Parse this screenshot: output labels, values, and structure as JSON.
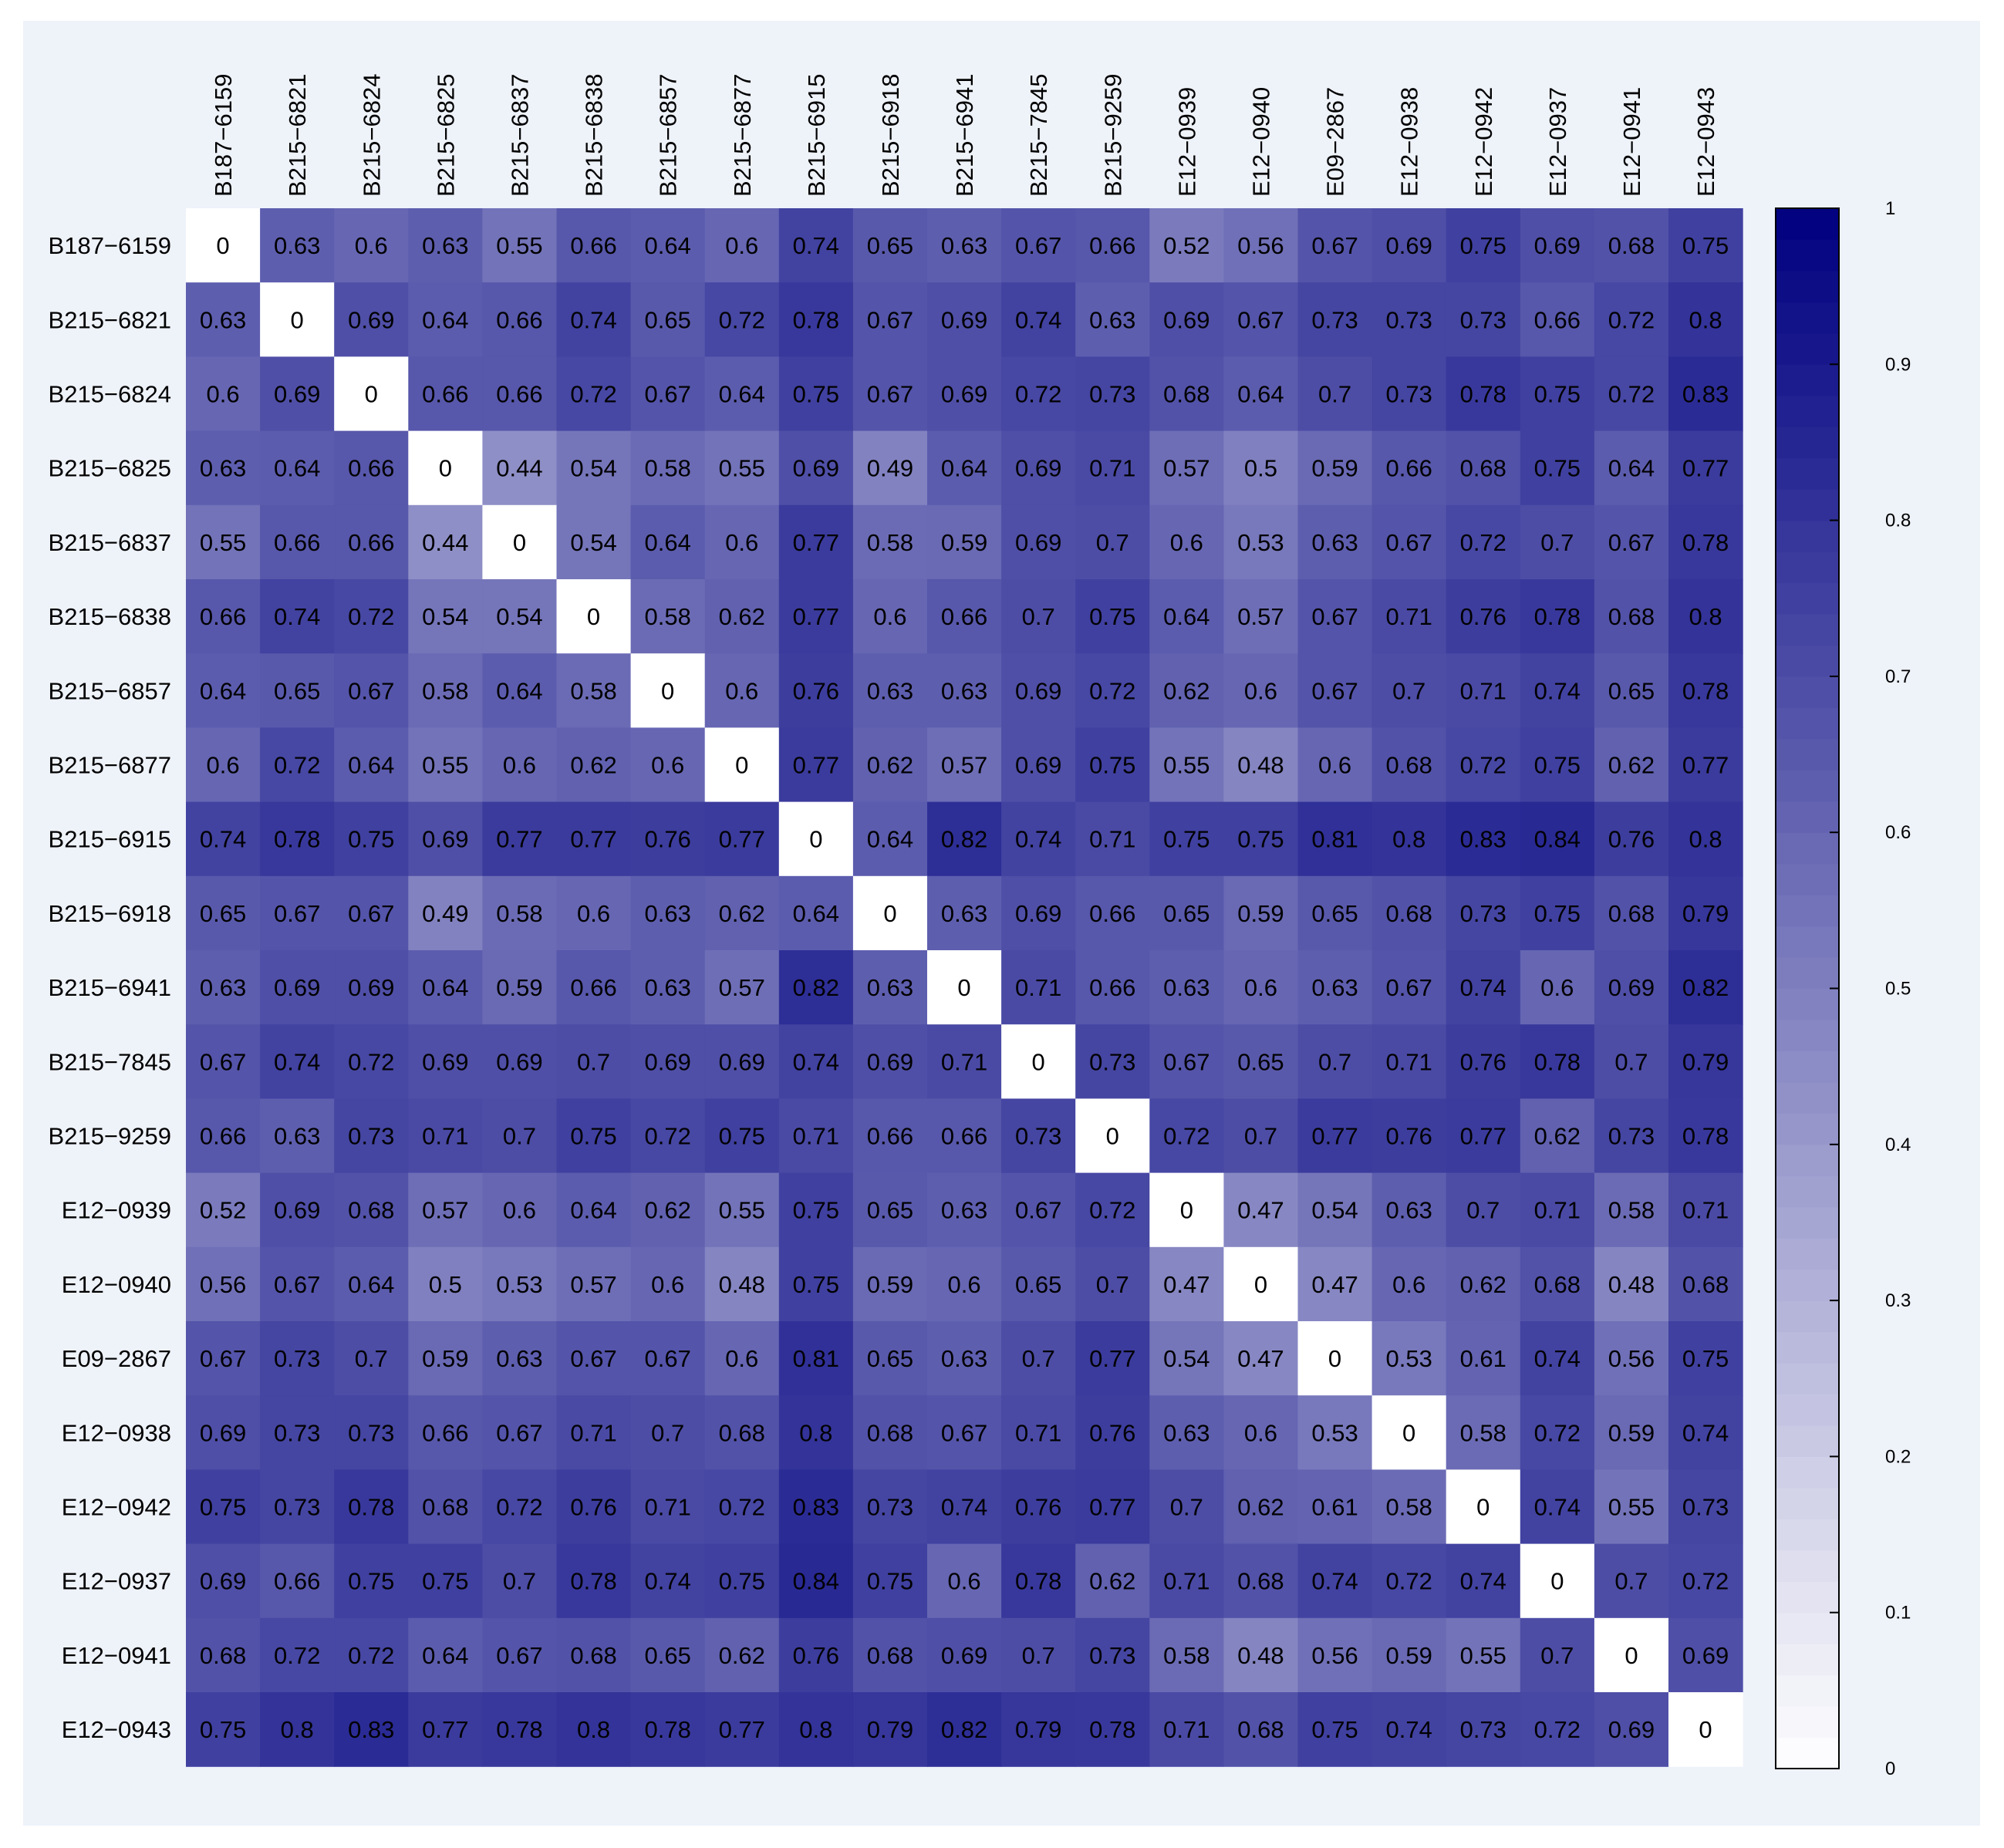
{
  "chart_data": {
    "type": "heatmap",
    "title": "",
    "xlabel": "",
    "ylabel": "",
    "row_labels": [
      "B187−6159",
      "B215−6821",
      "B215−6824",
      "B215−6825",
      "B215−6837",
      "B215−6838",
      "B215−6857",
      "B215−6877",
      "B215−6915",
      "B215−6918",
      "B215−6941",
      "B215−7845",
      "B215−9259",
      "E12−0939",
      "E12−0940",
      "E09−2867",
      "E12−0938",
      "E12−0942",
      "E12−0937",
      "E12−0941",
      "E12−0943"
    ],
    "col_labels": [
      "B187−6159",
      "B215−6821",
      "B215−6824",
      "B215−6825",
      "B215−6837",
      "B215−6838",
      "B215−6857",
      "B215−6877",
      "B215−6915",
      "B215−6918",
      "B215−6941",
      "B215−7845",
      "B215−9259",
      "E12−0939",
      "E12−0940",
      "E09−2867",
      "E12−0938",
      "E12−0942",
      "E12−0937",
      "E12−0941",
      "E12−0943"
    ],
    "values": [
      [
        0,
        0.63,
        0.6,
        0.63,
        0.55,
        0.66,
        0.64,
        0.6,
        0.74,
        0.65,
        0.63,
        0.67,
        0.66,
        0.52,
        0.56,
        0.67,
        0.69,
        0.75,
        0.69,
        0.68,
        0.75
      ],
      [
        0.63,
        0,
        0.69,
        0.64,
        0.66,
        0.74,
        0.65,
        0.72,
        0.78,
        0.67,
        0.69,
        0.74,
        0.63,
        0.69,
        0.67,
        0.73,
        0.73,
        0.73,
        0.66,
        0.72,
        0.8
      ],
      [
        0.6,
        0.69,
        0,
        0.66,
        0.66,
        0.72,
        0.67,
        0.64,
        0.75,
        0.67,
        0.69,
        0.72,
        0.73,
        0.68,
        0.64,
        0.7,
        0.73,
        0.78,
        0.75,
        0.72,
        0.83
      ],
      [
        0.63,
        0.64,
        0.66,
        0,
        0.44,
        0.54,
        0.58,
        0.55,
        0.69,
        0.49,
        0.64,
        0.69,
        0.71,
        0.57,
        0.5,
        0.59,
        0.66,
        0.68,
        0.75,
        0.64,
        0.77
      ],
      [
        0.55,
        0.66,
        0.66,
        0.44,
        0,
        0.54,
        0.64,
        0.6,
        0.77,
        0.58,
        0.59,
        0.69,
        0.7,
        0.6,
        0.53,
        0.63,
        0.67,
        0.72,
        0.7,
        0.67,
        0.78
      ],
      [
        0.66,
        0.74,
        0.72,
        0.54,
        0.54,
        0,
        0.58,
        0.62,
        0.77,
        0.6,
        0.66,
        0.7,
        0.75,
        0.64,
        0.57,
        0.67,
        0.71,
        0.76,
        0.78,
        0.68,
        0.8
      ],
      [
        0.64,
        0.65,
        0.67,
        0.58,
        0.64,
        0.58,
        0,
        0.6,
        0.76,
        0.63,
        0.63,
        0.69,
        0.72,
        0.62,
        0.6,
        0.67,
        0.7,
        0.71,
        0.74,
        0.65,
        0.78
      ],
      [
        0.6,
        0.72,
        0.64,
        0.55,
        0.6,
        0.62,
        0.6,
        0,
        0.77,
        0.62,
        0.57,
        0.69,
        0.75,
        0.55,
        0.48,
        0.6,
        0.68,
        0.72,
        0.75,
        0.62,
        0.77
      ],
      [
        0.74,
        0.78,
        0.75,
        0.69,
        0.77,
        0.77,
        0.76,
        0.77,
        0,
        0.64,
        0.82,
        0.74,
        0.71,
        0.75,
        0.75,
        0.81,
        0.8,
        0.83,
        0.84,
        0.76,
        0.8
      ],
      [
        0.65,
        0.67,
        0.67,
        0.49,
        0.58,
        0.6,
        0.63,
        0.62,
        0.64,
        0,
        0.63,
        0.69,
        0.66,
        0.65,
        0.59,
        0.65,
        0.68,
        0.73,
        0.75,
        0.68,
        0.79
      ],
      [
        0.63,
        0.69,
        0.69,
        0.64,
        0.59,
        0.66,
        0.63,
        0.57,
        0.82,
        0.63,
        0,
        0.71,
        0.66,
        0.63,
        0.6,
        0.63,
        0.67,
        0.74,
        0.6,
        0.69,
        0.82
      ],
      [
        0.67,
        0.74,
        0.72,
        0.69,
        0.69,
        0.7,
        0.69,
        0.69,
        0.74,
        0.69,
        0.71,
        0,
        0.73,
        0.67,
        0.65,
        0.7,
        0.71,
        0.76,
        0.78,
        0.7,
        0.79
      ],
      [
        0.66,
        0.63,
        0.73,
        0.71,
        0.7,
        0.75,
        0.72,
        0.75,
        0.71,
        0.66,
        0.66,
        0.73,
        0,
        0.72,
        0.7,
        0.77,
        0.76,
        0.77,
        0.62,
        0.73,
        0.78
      ],
      [
        0.52,
        0.69,
        0.68,
        0.57,
        0.6,
        0.64,
        0.62,
        0.55,
        0.75,
        0.65,
        0.63,
        0.67,
        0.72,
        0,
        0.47,
        0.54,
        0.63,
        0.7,
        0.71,
        0.58,
        0.71
      ],
      [
        0.56,
        0.67,
        0.64,
        0.5,
        0.53,
        0.57,
        0.6,
        0.48,
        0.75,
        0.59,
        0.6,
        0.65,
        0.7,
        0.47,
        0,
        0.47,
        0.6,
        0.62,
        0.68,
        0.48,
        0.68
      ],
      [
        0.67,
        0.73,
        0.7,
        0.59,
        0.63,
        0.67,
        0.67,
        0.6,
        0.81,
        0.65,
        0.63,
        0.7,
        0.77,
        0.54,
        0.47,
        0,
        0.53,
        0.61,
        0.74,
        0.56,
        0.75
      ],
      [
        0.69,
        0.73,
        0.73,
        0.66,
        0.67,
        0.71,
        0.7,
        0.68,
        0.8,
        0.68,
        0.67,
        0.71,
        0.76,
        0.63,
        0.6,
        0.53,
        0,
        0.58,
        0.72,
        0.59,
        0.74
      ],
      [
        0.75,
        0.73,
        0.78,
        0.68,
        0.72,
        0.76,
        0.71,
        0.72,
        0.83,
        0.73,
        0.74,
        0.76,
        0.77,
        0.7,
        0.62,
        0.61,
        0.58,
        0,
        0.74,
        0.55,
        0.73
      ],
      [
        0.69,
        0.66,
        0.75,
        0.75,
        0.7,
        0.78,
        0.74,
        0.75,
        0.84,
        0.75,
        0.6,
        0.78,
        0.62,
        0.71,
        0.68,
        0.74,
        0.72,
        0.74,
        0,
        0.7,
        0.72
      ],
      [
        0.68,
        0.72,
        0.72,
        0.64,
        0.67,
        0.68,
        0.65,
        0.62,
        0.76,
        0.68,
        0.69,
        0.7,
        0.73,
        0.58,
        0.48,
        0.56,
        0.59,
        0.55,
        0.7,
        0,
        0.69
      ],
      [
        0.75,
        0.8,
        0.83,
        0.77,
        0.78,
        0.8,
        0.78,
        0.77,
        0.8,
        0.79,
        0.82,
        0.79,
        0.78,
        0.71,
        0.68,
        0.75,
        0.74,
        0.73,
        0.72,
        0.69,
        0
      ]
    ],
    "color_scale": {
      "min": 0,
      "max": 1,
      "low_color": "#ffffff",
      "high_color": "#000080",
      "steps": 50
    },
    "colorbar_ticks": [
      "0",
      "0.1",
      "0.2",
      "0.3",
      "0.4",
      "0.5",
      "0.6",
      "0.7",
      "0.8",
      "0.9",
      "1"
    ],
    "panel_background": "#eef2f9",
    "legend_position": "right"
  }
}
